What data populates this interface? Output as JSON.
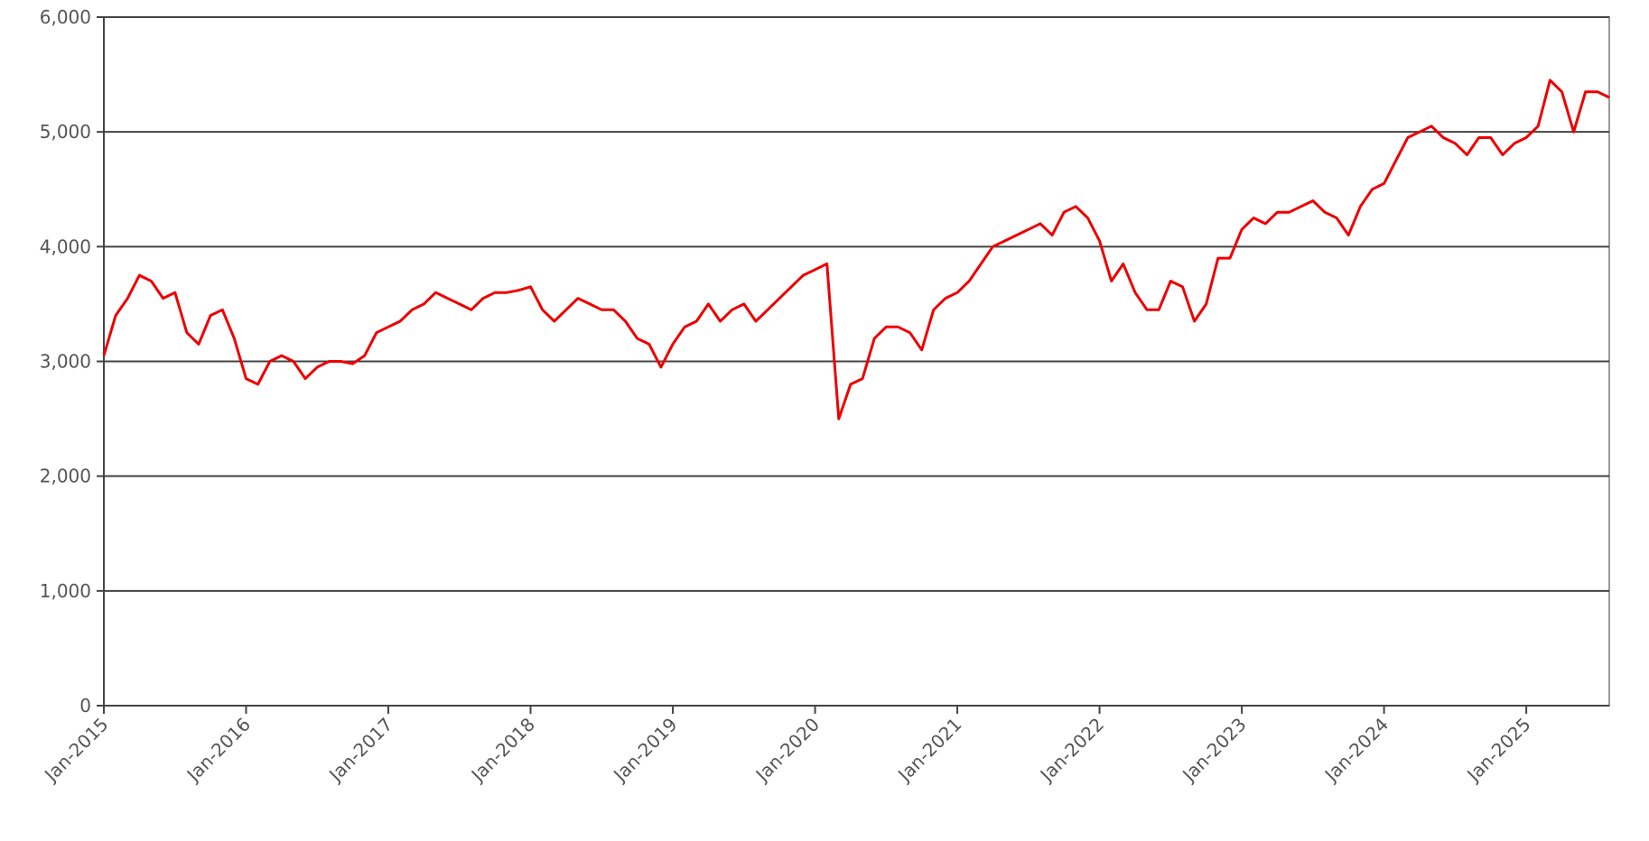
{
  "chart_data": {
    "type": "line",
    "x": [
      "2015-01",
      "2015-02",
      "2015-03",
      "2015-04",
      "2015-05",
      "2015-06",
      "2015-07",
      "2015-08",
      "2015-09",
      "2015-10",
      "2015-11",
      "2015-12",
      "2016-01",
      "2016-02",
      "2016-03",
      "2016-04",
      "2016-05",
      "2016-06",
      "2016-07",
      "2016-08",
      "2016-09",
      "2016-10",
      "2016-11",
      "2016-12",
      "2017-01",
      "2017-02",
      "2017-03",
      "2017-04",
      "2017-05",
      "2017-06",
      "2017-07",
      "2017-08",
      "2017-09",
      "2017-10",
      "2017-11",
      "2017-12",
      "2018-01",
      "2018-02",
      "2018-03",
      "2018-04",
      "2018-05",
      "2018-06",
      "2018-07",
      "2018-08",
      "2018-09",
      "2018-10",
      "2018-11",
      "2018-12",
      "2019-01",
      "2019-02",
      "2019-03",
      "2019-04",
      "2019-05",
      "2019-06",
      "2019-07",
      "2019-08",
      "2019-09",
      "2019-10",
      "2019-11",
      "2019-12",
      "2020-01",
      "2020-02",
      "2020-03",
      "2020-04",
      "2020-05",
      "2020-06",
      "2020-07",
      "2020-08",
      "2020-09",
      "2020-10",
      "2020-11",
      "2020-12",
      "2021-01",
      "2021-02",
      "2021-03",
      "2021-04",
      "2021-05",
      "2021-06",
      "2021-07",
      "2021-08",
      "2021-09",
      "2021-10",
      "2021-11",
      "2021-12",
      "2022-01",
      "2022-02",
      "2022-03",
      "2022-04",
      "2022-05",
      "2022-06",
      "2022-07",
      "2022-08",
      "2022-09",
      "2022-10",
      "2022-11",
      "2022-12",
      "2023-01",
      "2023-02",
      "2023-03",
      "2023-04",
      "2023-05",
      "2023-06",
      "2023-07",
      "2023-08",
      "2023-09",
      "2023-10",
      "2023-11",
      "2023-12",
      "2024-01",
      "2024-02",
      "2024-03",
      "2024-04",
      "2024-05",
      "2024-06",
      "2024-07",
      "2024-08",
      "2024-09",
      "2024-10",
      "2024-11",
      "2024-12",
      "2025-01",
      "2025-02",
      "2025-03",
      "2025-04",
      "2025-05",
      "2025-06",
      "2025-07",
      "2025-08"
    ],
    "series": [
      {
        "color": "#ee0000",
        "values": [
          3050,
          3400,
          3550,
          3750,
          3700,
          3550,
          3600,
          3250,
          3150,
          3400,
          3450,
          3200,
          2850,
          2800,
          3000,
          3050,
          3000,
          2850,
          2950,
          3000,
          3000,
          2980,
          3050,
          3250,
          3300,
          3350,
          3450,
          3500,
          3600,
          3550,
          3500,
          3450,
          3550,
          3600,
          3600,
          3620,
          3650,
          3450,
          3350,
          3450,
          3550,
          3500,
          3450,
          3450,
          3350,
          3200,
          3150,
          2950,
          3150,
          3300,
          3350,
          3500,
          3350,
          3450,
          3500,
          3350,
          3450,
          3550,
          3650,
          3750,
          3800,
          3850,
          2500,
          2800,
          2850,
          3200,
          3300,
          3300,
          3250,
          3100,
          3450,
          3550,
          3600,
          3700,
          3850,
          4000,
          4050,
          4100,
          4150,
          4200,
          4100,
          4300,
          4350,
          4250,
          4050,
          3700,
          3850,
          3600,
          3450,
          3450,
          3700,
          3650,
          3350,
          3500,
          3900,
          3900,
          4150,
          4250,
          4200,
          4300,
          4300,
          4350,
          4400,
          4300,
          4250,
          4100,
          4350,
          4500,
          4550,
          4750,
          4950,
          5000,
          5050,
          4950,
          4900,
          4800,
          4950,
          4950,
          4800,
          4900,
          4950,
          5050,
          5450,
          5350,
          5000,
          5350,
          5350,
          5300
        ]
      }
    ],
    "xlim": [
      "2015-01",
      "2025-08"
    ],
    "xticks": [
      {
        "value": "2015-01",
        "label": "Jan-2015"
      },
      {
        "value": "2016-01",
        "label": "Jan-2016"
      },
      {
        "value": "2017-01",
        "label": "Jan-2017"
      },
      {
        "value": "2018-01",
        "label": "Jan-2018"
      },
      {
        "value": "2019-01",
        "label": "Jan-2019"
      },
      {
        "value": "2020-01",
        "label": "Jan-2020"
      },
      {
        "value": "2021-01",
        "label": "Jan-2021"
      },
      {
        "value": "2022-01",
        "label": "Jan-2022"
      },
      {
        "value": "2023-01",
        "label": "Jan-2023"
      },
      {
        "value": "2024-01",
        "label": "Jan-2024"
      },
      {
        "value": "2025-01",
        "label": "Jan-2025"
      }
    ],
    "ylim": [
      0,
      6000
    ],
    "yticks": [
      0,
      {
        "value": 1000,
        "label": "1,000"
      },
      {
        "value": 2000,
        "label": "2,000"
      },
      {
        "value": 3000,
        "label": "3,000"
      },
      {
        "value": 4000,
        "label": "4,000"
      },
      {
        "value": 5000,
        "label": "5,000"
      },
      {
        "value": 6000,
        "label": "6,000"
      }
    ],
    "grid": true
  }
}
